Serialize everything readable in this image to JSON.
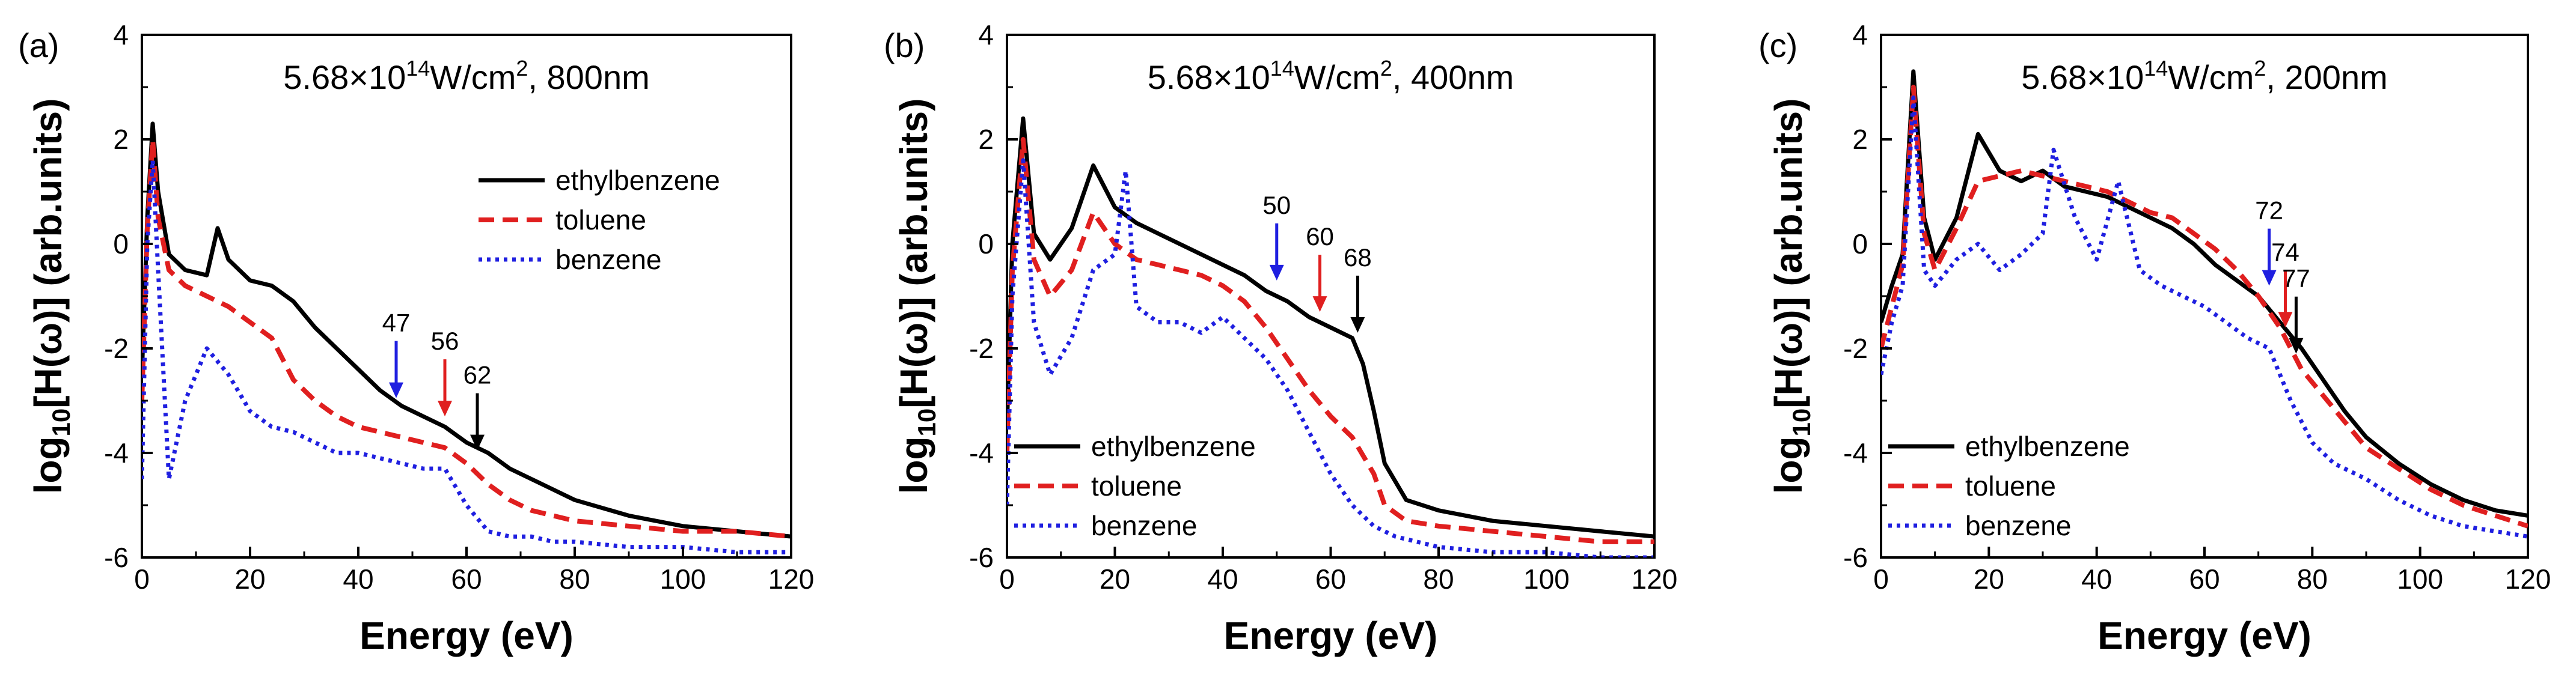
{
  "figure": {
    "panels": [
      {
        "label": "(a)",
        "title_base": "5.68×10",
        "title_sup": "14",
        "title_rest": "W/cm",
        "title_sup2": "2",
        "title_end": ", 800nm",
        "legend_position": "top-right",
        "annotations": [
          {
            "text": "47",
            "x": 47,
            "y_tip": -2.95,
            "color": "#1f1fe0"
          },
          {
            "text": "56",
            "x": 56,
            "y_tip": -3.3,
            "color": "#e01f1f"
          },
          {
            "text": "62",
            "x": 62,
            "y_tip": -3.95,
            "color": "#000000"
          }
        ]
      },
      {
        "label": "(b)",
        "title_base": "5.68×10",
        "title_sup": "14",
        "title_rest": "W/cm",
        "title_sup2": "2",
        "title_end": ", 400nm",
        "legend_position": "bottom-left",
        "annotations": [
          {
            "text": "50",
            "x": 50,
            "y_tip": -0.7,
            "color": "#1f1fe0"
          },
          {
            "text": "60",
            "x": 58,
            "y_tip": -1.3,
            "color": "#e01f1f"
          },
          {
            "text": "68",
            "x": 65,
            "y_tip": -1.7,
            "color": "#000000"
          }
        ]
      },
      {
        "label": "(c)",
        "title_base": "5.68×10",
        "title_sup": "14",
        "title_rest": "W/cm",
        "title_sup2": "2",
        "title_end": ", 200nm",
        "legend_position": "bottom-left",
        "annotations": [
          {
            "text": "72",
            "x": 72,
            "y_tip": -0.8,
            "color": "#1f1fe0"
          },
          {
            "text": "74",
            "x": 75,
            "y_tip": -1.6,
            "color": "#e01f1f"
          },
          {
            "text": "77",
            "x": 77,
            "y_tip": -2.1,
            "color": "#000000"
          }
        ]
      }
    ],
    "xlabel": "Energy (eV)",
    "ylabel_prefix": "log",
    "ylabel_sub": "10",
    "ylabel_rest": "[H(ω)] (arb.units)"
  },
  "chart_data": [
    {
      "type": "line",
      "title": "5.68×10^14W/cm^2, 800nm",
      "xlabel": "Energy (eV)",
      "ylabel": "log10[H(ω)] (arb.units)",
      "xlim": [
        0,
        120
      ],
      "ylim": [
        -6,
        4
      ],
      "xticks": [
        0,
        20,
        40,
        60,
        80,
        100,
        120
      ],
      "yticks": [
        -6,
        -4,
        -2,
        0,
        2,
        4
      ],
      "grid": false,
      "series": [
        {
          "name": "ethylbenzene",
          "color": "#000000",
          "style": "solid",
          "x": [
            0,
            1,
            2,
            3,
            5,
            8,
            12,
            14,
            16,
            20,
            24,
            28,
            32,
            36,
            40,
            44,
            48,
            52,
            56,
            60,
            64,
            68,
            72,
            76,
            80,
            90,
            100,
            110,
            120
          ],
          "y": [
            -2.5,
            0.5,
            2.3,
            1.0,
            -0.2,
            -0.5,
            -0.6,
            0.3,
            -0.3,
            -0.7,
            -0.8,
            -1.1,
            -1.6,
            -2.0,
            -2.4,
            -2.8,
            -3.1,
            -3.3,
            -3.5,
            -3.8,
            -4.0,
            -4.3,
            -4.5,
            -4.7,
            -4.9,
            -5.2,
            -5.4,
            -5.5,
            -5.6
          ]
        },
        {
          "name": "toluene",
          "color": "#e01f1f",
          "style": "dashed",
          "x": [
            0,
            1,
            2,
            3,
            5,
            8,
            12,
            16,
            20,
            24,
            28,
            32,
            36,
            40,
            44,
            48,
            52,
            56,
            60,
            64,
            68,
            72,
            76,
            80,
            90,
            100,
            110,
            120
          ],
          "y": [
            -3.0,
            0.3,
            2.0,
            0.5,
            -0.5,
            -0.8,
            -1.0,
            -1.2,
            -1.5,
            -1.8,
            -2.6,
            -3.0,
            -3.3,
            -3.5,
            -3.6,
            -3.7,
            -3.8,
            -3.9,
            -4.2,
            -4.6,
            -4.9,
            -5.1,
            -5.2,
            -5.3,
            -5.4,
            -5.5,
            -5.5,
            -5.6
          ]
        },
        {
          "name": "benzene",
          "color": "#1f1fe0",
          "style": "dotted",
          "x": [
            0,
            1,
            2,
            3,
            5,
            8,
            12,
            16,
            20,
            24,
            28,
            32,
            36,
            40,
            44,
            48,
            52,
            56,
            60,
            64,
            68,
            72,
            76,
            80,
            90,
            100,
            110,
            120
          ],
          "y": [
            -4.5,
            0.0,
            1.6,
            -0.5,
            -4.5,
            -3.0,
            -2.0,
            -2.5,
            -3.2,
            -3.5,
            -3.6,
            -3.8,
            -4.0,
            -4.0,
            -4.1,
            -4.2,
            -4.3,
            -4.3,
            -5.0,
            -5.5,
            -5.6,
            -5.6,
            -5.7,
            -5.7,
            -5.8,
            -5.8,
            -5.9,
            -5.9
          ]
        }
      ]
    },
    {
      "type": "line",
      "title": "5.68×10^14W/cm^2, 400nm",
      "xlabel": "Energy (eV)",
      "ylabel": "log10[H(ω)] (arb.units)",
      "xlim": [
        0,
        120
      ],
      "ylim": [
        -6,
        4
      ],
      "xticks": [
        0,
        20,
        40,
        60,
        80,
        100,
        120
      ],
      "yticks": [
        -6,
        -4,
        -2,
        0,
        2,
        4
      ],
      "grid": false,
      "series": [
        {
          "name": "ethylbenzene",
          "color": "#000000",
          "style": "solid",
          "x": [
            0,
            1,
            3,
            5,
            8,
            12,
            16,
            20,
            24,
            28,
            32,
            36,
            40,
            44,
            48,
            52,
            56,
            60,
            64,
            66,
            68,
            70,
            74,
            80,
            90,
            100,
            110,
            120
          ],
          "y": [
            -3.5,
            0.0,
            2.4,
            0.2,
            -0.3,
            0.3,
            1.5,
            0.7,
            0.4,
            0.2,
            0.0,
            -0.2,
            -0.4,
            -0.6,
            -0.9,
            -1.1,
            -1.4,
            -1.6,
            -1.8,
            -2.3,
            -3.2,
            -4.2,
            -4.9,
            -5.1,
            -5.3,
            -5.4,
            -5.5,
            -5.6
          ]
        },
        {
          "name": "toluene",
          "color": "#e01f1f",
          "style": "dashed",
          "x": [
            0,
            1,
            3,
            5,
            8,
            12,
            16,
            20,
            24,
            28,
            32,
            36,
            40,
            44,
            48,
            52,
            56,
            60,
            64,
            68,
            70,
            74,
            80,
            90,
            100,
            110,
            120
          ],
          "y": [
            -4.0,
            -0.5,
            2.0,
            -0.3,
            -1.0,
            -0.5,
            0.6,
            0.0,
            -0.3,
            -0.4,
            -0.5,
            -0.6,
            -0.8,
            -1.1,
            -1.6,
            -2.2,
            -2.8,
            -3.3,
            -3.7,
            -4.4,
            -5.0,
            -5.3,
            -5.4,
            -5.5,
            -5.6,
            -5.7,
            -5.7
          ]
        },
        {
          "name": "benzene",
          "color": "#1f1fe0",
          "style": "dotted",
          "x": [
            0,
            1,
            3,
            5,
            8,
            12,
            16,
            20,
            22,
            24,
            28,
            32,
            36,
            40,
            44,
            48,
            52,
            56,
            60,
            64,
            68,
            72,
            80,
            90,
            100,
            110,
            120
          ],
          "y": [
            -5.0,
            -1.0,
            1.6,
            -1.5,
            -2.5,
            -1.8,
            -0.5,
            -0.2,
            1.4,
            -1.2,
            -1.5,
            -1.5,
            -1.7,
            -1.4,
            -1.8,
            -2.2,
            -2.8,
            -3.6,
            -4.4,
            -5.0,
            -5.4,
            -5.6,
            -5.8,
            -5.9,
            -5.9,
            -6.0,
            -6.0
          ]
        }
      ]
    },
    {
      "type": "line",
      "title": "5.68×10^14W/cm^2, 200nm",
      "xlabel": "Energy (eV)",
      "ylabel": "log10[H(ω)] (arb.units)",
      "xlim": [
        0,
        120
      ],
      "ylim": [
        -6,
        4
      ],
      "xticks": [
        0,
        20,
        40,
        60,
        80,
        100,
        120
      ],
      "yticks": [
        -6,
        -4,
        -2,
        0,
        2,
        4
      ],
      "grid": false,
      "series": [
        {
          "name": "ethylbenzene",
          "color": "#000000",
          "style": "solid",
          "x": [
            0,
            2,
            4,
            6,
            8,
            10,
            14,
            18,
            22,
            26,
            30,
            34,
            38,
            42,
            46,
            50,
            54,
            58,
            62,
            66,
            70,
            74,
            78,
            82,
            86,
            90,
            96,
            102,
            108,
            114,
            120
          ],
          "y": [
            -1.5,
            -0.8,
            -0.2,
            3.3,
            0.5,
            -0.3,
            0.5,
            2.1,
            1.4,
            1.2,
            1.4,
            1.1,
            1.0,
            0.9,
            0.7,
            0.5,
            0.3,
            0.0,
            -0.4,
            -0.7,
            -1.0,
            -1.5,
            -2.0,
            -2.6,
            -3.2,
            -3.7,
            -4.2,
            -4.6,
            -4.9,
            -5.1,
            -5.2
          ]
        },
        {
          "name": "toluene",
          "color": "#e01f1f",
          "style": "dashed",
          "x": [
            0,
            2,
            4,
            6,
            8,
            10,
            14,
            18,
            22,
            26,
            30,
            34,
            38,
            42,
            46,
            50,
            54,
            58,
            62,
            66,
            70,
            74,
            78,
            82,
            86,
            90,
            96,
            102,
            108,
            114,
            120
          ],
          "y": [
            -2.0,
            -1.2,
            -0.4,
            3.0,
            0.2,
            -0.5,
            0.3,
            1.2,
            1.3,
            1.4,
            1.3,
            1.2,
            1.1,
            1.0,
            0.8,
            0.6,
            0.5,
            0.2,
            -0.1,
            -0.5,
            -1.0,
            -1.6,
            -2.4,
            -2.9,
            -3.4,
            -3.9,
            -4.3,
            -4.7,
            -5.0,
            -5.2,
            -5.4
          ]
        },
        {
          "name": "benzene",
          "color": "#1f1fe0",
          "style": "dotted",
          "x": [
            0,
            2,
            4,
            6,
            8,
            10,
            14,
            18,
            22,
            26,
            30,
            32,
            36,
            40,
            44,
            48,
            52,
            56,
            60,
            64,
            68,
            72,
            76,
            80,
            84,
            90,
            96,
            102,
            108,
            114,
            120
          ],
          "y": [
            -2.5,
            -1.5,
            -0.8,
            2.8,
            -0.5,
            -0.8,
            -0.3,
            0.0,
            -0.5,
            -0.2,
            0.2,
            1.8,
            0.5,
            -0.3,
            1.2,
            -0.5,
            -0.8,
            -1.0,
            -1.2,
            -1.5,
            -1.8,
            -2.0,
            -3.0,
            -3.8,
            -4.2,
            -4.5,
            -4.9,
            -5.2,
            -5.4,
            -5.5,
            -5.6
          ]
        }
      ]
    }
  ]
}
